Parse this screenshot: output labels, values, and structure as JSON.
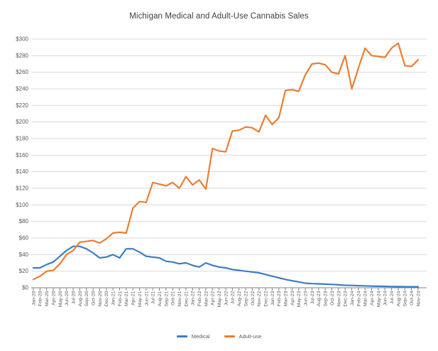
{
  "chart_data": {
    "type": "line",
    "title": "Michigan Medical and Adult-Use Cannabis Sales",
    "xlabel": "",
    "ylabel": "",
    "ylim": [
      0,
      300
    ],
    "y_tick_step": 20,
    "y_tick_labels": [
      "$0",
      "$20",
      "$40",
      "$60",
      "$80",
      "$100",
      "$120",
      "$140",
      "$160",
      "$180",
      "$200",
      "$220",
      "$240",
      "$260",
      "$280",
      "$300"
    ],
    "grid": true,
    "legend_position": "bottom",
    "categories": [
      "Jan-20",
      "Feb-20",
      "Mar-20",
      "Apr-20",
      "May-20",
      "Jun-20",
      "Jul-20",
      "Aug-20",
      "Sep-20",
      "Oct-20",
      "Nov-20",
      "Dec-20",
      "Jan-21",
      "Feb-21",
      "Mar-21",
      "Apr-21",
      "May-21",
      "Jun-21",
      "Jul-21",
      "Aug-21",
      "Sep-21",
      "Oct-21",
      "Nov-21",
      "Dec-21",
      "Jan-22",
      "Feb-22",
      "Mar-22",
      "Apr-22",
      "May-22",
      "Jun-22",
      "Jul-22",
      "Aug-22",
      "Sep-22",
      "Oct-22",
      "Nov-22",
      "Dec-22",
      "Jan-23",
      "Feb-23",
      "Mar-23",
      "Apr-23",
      "May-23",
      "Jun-23",
      "Jul-23",
      "Aug-23",
      "Sep-23",
      "Oct-23",
      "Nov-23",
      "Dec-23",
      "Jan-24",
      "Feb-24",
      "Mar-24",
      "Apr-24",
      "May-24",
      "Jun-24",
      "Jul-24",
      "Aug-24",
      "Sep-24",
      "Oct-24",
      "Nov-24"
    ],
    "series": [
      {
        "name": "Medical",
        "color": "#3C7DC5",
        "values": [
          24,
          24,
          28,
          31,
          38,
          45,
          50,
          50,
          47,
          42,
          36,
          37,
          40,
          36,
          47,
          47,
          43,
          38,
          37,
          36,
          32,
          31,
          29,
          30,
          27,
          25,
          30,
          27,
          25,
          24,
          22,
          21,
          20,
          19,
          18,
          16,
          14,
          12,
          10,
          8.5,
          7,
          5.5,
          5,
          4.7,
          4.4,
          4,
          3.5,
          3,
          2.8,
          2.5,
          2.3,
          2,
          1.8,
          1.7,
          1.5,
          1.4,
          1.3,
          1.2,
          1.2
        ]
      },
      {
        "name": "Adult-use",
        "color": "#ED7D31",
        "values": [
          10,
          14,
          20,
          21,
          29,
          40,
          45,
          55,
          56,
          57,
          54,
          59,
          66,
          67,
          66,
          96,
          104,
          103,
          127,
          125,
          123,
          127,
          120,
          134,
          124,
          130,
          119,
          168,
          165,
          164,
          189,
          190,
          194,
          193,
          188,
          208,
          197,
          205,
          238,
          239,
          237,
          257,
          270,
          271,
          269,
          260,
          258,
          280,
          240,
          265,
          289,
          280,
          279,
          278,
          289,
          295,
          268,
          267,
          275
        ]
      }
    ],
    "colors": {
      "gridline": "#D9D9D9",
      "axis": "#808080",
      "tick": "#808080",
      "axis_label": "#595959",
      "title": "#404040"
    }
  }
}
